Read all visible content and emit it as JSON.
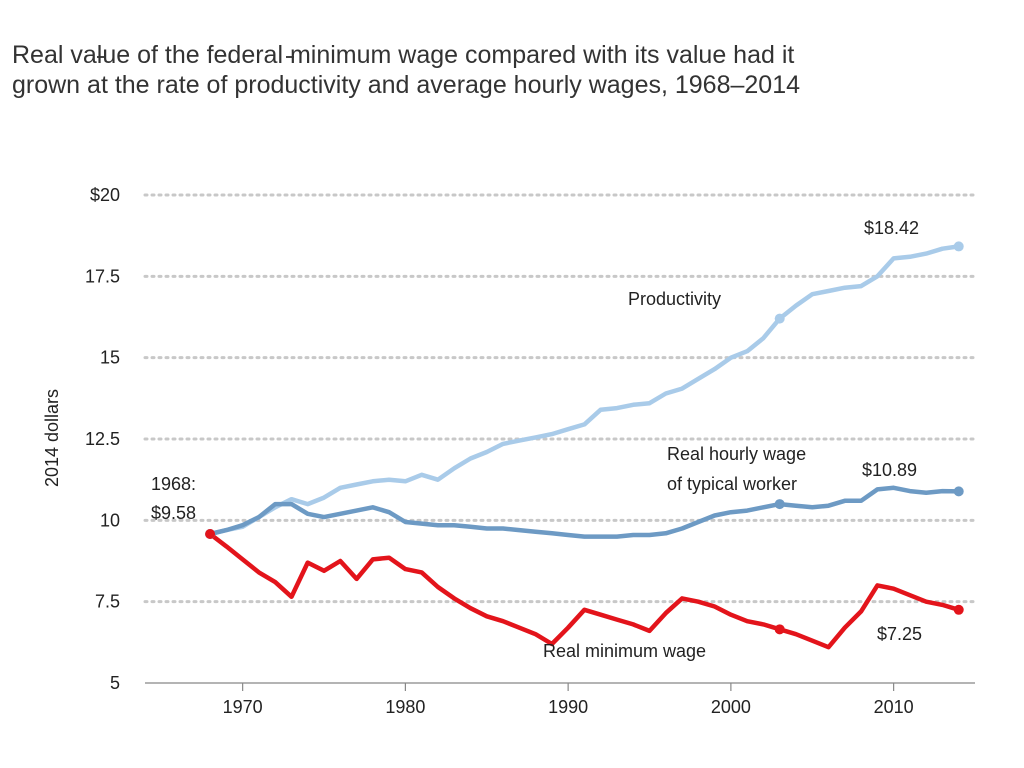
{
  "title": {
    "line1": "Real value of the federal minimum wage compared with its value had it",
    "line2": "grown at the rate of productivity and average hourly wages, 1968–2014"
  },
  "colors": {
    "productivity": "#a9cbe9",
    "typical_wage": "#6d9ac4",
    "minimum_wage": "#e3141b",
    "grid": "#c8c8c8"
  },
  "chart_data": {
    "type": "line",
    "ylabel": "2014 dollars",
    "xlim": [
      1964,
      2015
    ],
    "ylim": [
      5,
      20
    ],
    "x_ticks": [
      1970,
      1980,
      1990,
      2000,
      2010
    ],
    "y_ticks": [
      {
        "value": 20,
        "label": "$20"
      },
      {
        "value": 17.5,
        "label": "17.5"
      },
      {
        "value": 15,
        "label": "15"
      },
      {
        "value": 12.5,
        "label": "12.5"
      },
      {
        "value": 10,
        "label": "10"
      },
      {
        "value": 7.5,
        "label": "7.5"
      },
      {
        "value": 5,
        "label": "5"
      }
    ],
    "grid": "horizontal-dotted",
    "x": [
      1968,
      1969,
      1970,
      1971,
      1972,
      1973,
      1974,
      1975,
      1976,
      1977,
      1978,
      1979,
      1980,
      1981,
      1982,
      1983,
      1984,
      1985,
      1986,
      1987,
      1988,
      1989,
      1990,
      1991,
      1992,
      1993,
      1994,
      1995,
      1996,
      1997,
      1998,
      1999,
      2000,
      2001,
      2002,
      2003,
      2004,
      2005,
      2006,
      2007,
      2008,
      2009,
      2010,
      2011,
      2012,
      2013,
      2014
    ],
    "series": [
      {
        "key": "productivity",
        "name": "Productivity",
        "values": [
          9.58,
          9.7,
          9.8,
          10.1,
          10.4,
          10.65,
          10.5,
          10.7,
          11.0,
          11.1,
          11.2,
          11.25,
          11.2,
          11.4,
          11.25,
          11.6,
          11.9,
          12.1,
          12.35,
          12.45,
          12.55,
          12.65,
          12.8,
          12.95,
          13.4,
          13.45,
          13.55,
          13.6,
          13.9,
          14.05,
          14.35,
          14.65,
          15.0,
          15.2,
          15.6,
          16.2,
          16.6,
          16.95,
          17.05,
          17.15,
          17.2,
          17.5,
          18.05,
          18.1,
          18.2,
          18.35,
          18.42
        ],
        "markers": [
          1968,
          2003,
          2014
        ]
      },
      {
        "key": "typical_wage",
        "name": "Real hourly wage of typical worker",
        "values": [
          9.58,
          9.7,
          9.85,
          10.1,
          10.5,
          10.5,
          10.2,
          10.1,
          10.2,
          10.3,
          10.4,
          10.25,
          9.95,
          9.9,
          9.85,
          9.85,
          9.8,
          9.75,
          9.75,
          9.7,
          9.65,
          9.6,
          9.55,
          9.5,
          9.5,
          9.5,
          9.55,
          9.55,
          9.6,
          9.75,
          9.95,
          10.15,
          10.25,
          10.3,
          10.4,
          10.5,
          10.45,
          10.4,
          10.45,
          10.6,
          10.6,
          10.95,
          11.0,
          10.9,
          10.85,
          10.9,
          10.89
        ],
        "markers": [
          1968,
          2003,
          2014
        ]
      },
      {
        "key": "minimum_wage",
        "name": "Real minimum wage",
        "values": [
          9.58,
          9.2,
          8.8,
          8.4,
          8.1,
          7.65,
          8.7,
          8.45,
          8.75,
          8.2,
          8.8,
          8.85,
          8.5,
          8.4,
          7.95,
          7.6,
          7.3,
          7.05,
          6.9,
          6.7,
          6.5,
          6.2,
          6.7,
          7.25,
          7.1,
          6.95,
          6.8,
          6.6,
          7.15,
          7.6,
          7.5,
          7.35,
          7.1,
          6.9,
          6.8,
          6.65,
          6.5,
          6.3,
          6.1,
          6.7,
          7.2,
          8.0,
          7.9,
          7.7,
          7.5,
          7.4,
          7.25
        ],
        "markers": [
          1968,
          2003,
          2014
        ]
      }
    ],
    "annotations": {
      "start_label_line1": "1968:",
      "start_label_line2": "$9.58",
      "productivity_label": "Productivity",
      "productivity_end": "$18.42",
      "typical_label_line1": "Real hourly wage",
      "typical_label_line2": "of typical worker",
      "typical_end": "$10.89",
      "minimum_label": "Real minimum wage",
      "minimum_end": "$7.25"
    }
  }
}
